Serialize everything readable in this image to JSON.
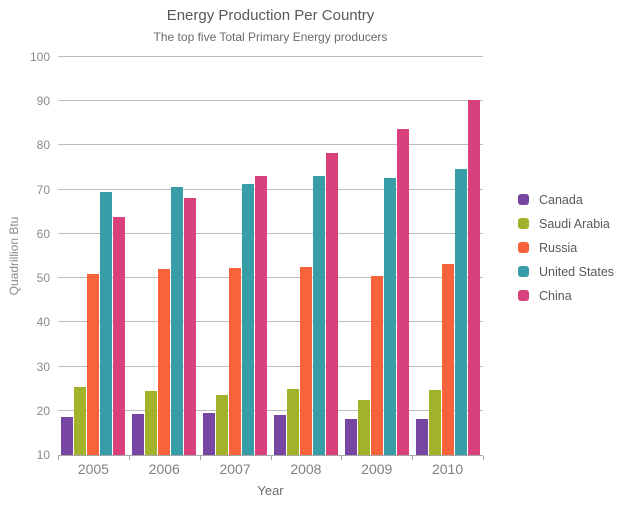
{
  "title": "Energy Production Per Country",
  "subtitle": "The top five Total Primary Energy producers",
  "x_axis_title": "Year",
  "y_axis_title": "Quadrillion Btu",
  "chart_data": {
    "type": "bar",
    "title": "Energy Production Per Country",
    "subtitle": "The top five Total Primary Energy producers",
    "xlabel": "Year",
    "ylabel": "Quadrillion Btu",
    "categories": [
      "2005",
      "2006",
      "2007",
      "2008",
      "2009",
      "2010"
    ],
    "series": [
      {
        "name": "Canada",
        "color": "#7745a2",
        "values": [
          18.7,
          19.2,
          19.4,
          19.0,
          18.1,
          18.2
        ]
      },
      {
        "name": "Saudi Arabia",
        "color": "#a2b22b",
        "values": [
          25.3,
          24.5,
          23.5,
          25.0,
          22.5,
          24.6
        ]
      },
      {
        "name": "Russia",
        "color": "#f8633c",
        "values": [
          51.0,
          52.0,
          52.4,
          52.5,
          50.4,
          53.1
        ]
      },
      {
        "name": "United States",
        "color": "#379ea8",
        "values": [
          69.4,
          70.7,
          71.2,
          73.1,
          72.6,
          74.6
        ]
      },
      {
        "name": "China",
        "color": "#d9417c",
        "values": [
          63.8,
          68.1,
          73.1,
          78.2,
          83.8,
          90.2
        ]
      }
    ],
    "ylim": [
      10,
      100
    ],
    "ytick_step": 10,
    "grid": true,
    "legend_position": "right",
    "colors": {
      "grid": "#bdbdbd",
      "axis": "#a8a8a8",
      "axis_text": "#8a8a8a",
      "title_text": "#595959"
    }
  }
}
